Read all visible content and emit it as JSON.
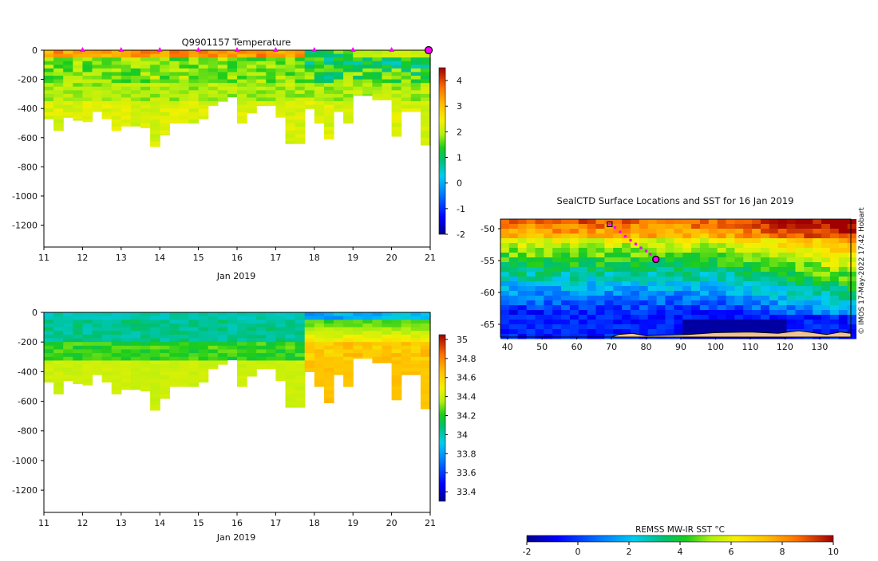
{
  "chart_data": [
    {
      "type": "heatmap",
      "id": "temperature-section",
      "title": "Q9901157  Temperature",
      "xlabel": "Jan 2019",
      "ylabel": "",
      "xlim": [
        11,
        21
      ],
      "ylim": [
        -1350,
        0
      ],
      "x_ticks": [
        11,
        12,
        13,
        14,
        15,
        16,
        17,
        18,
        19,
        20,
        21
      ],
      "y_ticks": [
        0,
        -200,
        -400,
        -600,
        -800,
        -1000,
        -1200
      ],
      "profile_markers_x": [
        12,
        13,
        14,
        15,
        16,
        17,
        18,
        19,
        20
      ],
      "last_profile_marker_x": 21,
      "profiles_x": [
        11.0,
        11.25,
        11.5,
        11.75,
        12.0,
        12.25,
        12.5,
        12.75,
        13.0,
        13.25,
        13.5,
        13.75,
        14.0,
        14.25,
        14.5,
        14.75,
        15.0,
        15.25,
        15.5,
        15.75,
        16.0,
        16.25,
        16.5,
        16.75,
        17.0,
        17.25,
        17.5,
        17.75,
        18.0,
        18.25,
        18.5,
        18.75,
        19.0,
        19.25,
        19.5,
        19.75,
        20.0,
        20.25,
        20.5,
        20.75
      ],
      "profile_bottom_depth": [
        -470,
        -550,
        -460,
        -480,
        -490,
        -420,
        -470,
        -550,
        -520,
        -520,
        -530,
        -660,
        -580,
        -500,
        -500,
        -500,
        -470,
        -380,
        -350,
        -320,
        -500,
        -430,
        -380,
        -380,
        -460,
        -640,
        -640,
        -400,
        -500,
        -610,
        -420,
        -500,
        -310,
        -310,
        -340,
        -340,
        -590,
        -420,
        -420,
        -650
      ],
      "colorbar": {
        "label": "",
        "range": [
          -2,
          4.5
        ],
        "ticks": [
          -2,
          -1,
          0,
          1,
          2,
          3,
          4
        ]
      }
    },
    {
      "type": "heatmap",
      "id": "salinity-section",
      "title": "",
      "xlabel": "Jan 2019",
      "ylabel": "",
      "xlim": [
        11,
        21
      ],
      "ylim": [
        -1350,
        0
      ],
      "x_ticks": [
        11,
        12,
        13,
        14,
        15,
        16,
        17,
        18,
        19,
        20,
        21
      ],
      "y_ticks": [
        0,
        -200,
        -400,
        -600,
        -800,
        -1000,
        -1200
      ],
      "profiles_x": [
        11.0,
        11.25,
        11.5,
        11.75,
        12.0,
        12.25,
        12.5,
        12.75,
        13.0,
        13.25,
        13.5,
        13.75,
        14.0,
        14.25,
        14.5,
        14.75,
        15.0,
        15.25,
        15.5,
        15.75,
        16.0,
        16.25,
        16.5,
        16.75,
        17.0,
        17.25,
        17.5,
        17.75,
        18.0,
        18.25,
        18.5,
        18.75,
        19.0,
        19.25,
        19.5,
        19.75,
        20.0,
        20.25,
        20.5,
        20.75
      ],
      "profile_bottom_depth": [
        -470,
        -550,
        -460,
        -480,
        -490,
        -420,
        -470,
        -550,
        -520,
        -520,
        -530,
        -660,
        -580,
        -500,
        -500,
        -500,
        -470,
        -380,
        -350,
        -320,
        -500,
        -430,
        -380,
        -380,
        -460,
        -640,
        -640,
        -400,
        -500,
        -610,
        -420,
        -500,
        -310,
        -310,
        -340,
        -340,
        -590,
        -420,
        -420,
        -650
      ],
      "colorbar": {
        "label": "",
        "range": [
          33.3,
          35.05
        ],
        "ticks": [
          33.4,
          33.6,
          33.8,
          34,
          34.2,
          34.4,
          34.6,
          34.8,
          35
        ]
      }
    },
    {
      "type": "heatmap",
      "id": "sst-map",
      "title": "SealCTD Surface Locations and SST for 16 Jan 2019",
      "xlabel": "",
      "ylabel": "",
      "xlim": [
        38,
        139
      ],
      "ylim": [
        -67,
        -48.5
      ],
      "x_ticks": [
        40,
        50,
        60,
        70,
        80,
        90,
        100,
        110,
        120,
        130
      ],
      "y_ticks": [
        -50,
        -55,
        -60,
        -65
      ],
      "track": {
        "lon": [
          69.5,
          71,
          72.5,
          74,
          75.5,
          77,
          78.5,
          80,
          81.2,
          82.5
        ],
        "lat": [
          -49.3,
          -49.8,
          -50.5,
          -51.2,
          -51.8,
          -52.4,
          -53.0,
          -53.5,
          -54.0,
          -54.7
        ]
      },
      "start_marker": {
        "lon": 69.5,
        "lat": -49.3
      },
      "end_marker": {
        "lon": 82.8,
        "lat": -54.8
      },
      "credit": "© IMOS 17-May-2022 17:42 Hobart",
      "colorbar": {
        "label": "REMSS MW-IR SST °C",
        "range": [
          -2,
          10
        ],
        "ticks": [
          -2,
          0,
          2,
          4,
          6,
          8,
          10
        ]
      }
    }
  ],
  "colors": {
    "magenta": "#ff00ff",
    "land": "#f1c392",
    "axis": "#000000"
  }
}
